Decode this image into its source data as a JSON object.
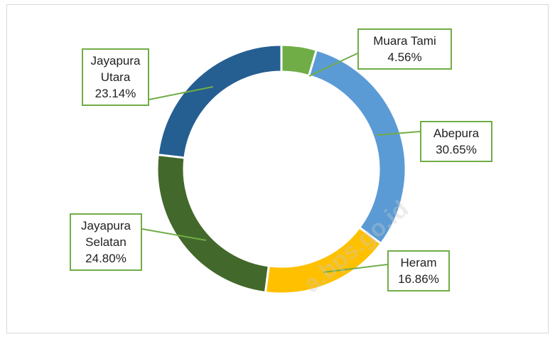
{
  "chart_data": {
    "type": "donut",
    "categories": [
      "Muara Tami",
      "Abepura",
      "Heram",
      "Jayapura Selatan",
      "Jayapura Utara"
    ],
    "values": [
      4.56,
      30.65,
      16.86,
      24.8,
      23.14
    ],
    "value_labels": [
      "4.56%",
      "30.65%",
      "16.86%",
      "24.80%",
      "23.14%"
    ],
    "colors": [
      "#70ad47",
      "#5b9bd5",
      "#ffc000",
      "#43682b",
      "#255e91"
    ],
    "watermark": "a.bps.go.id"
  }
}
